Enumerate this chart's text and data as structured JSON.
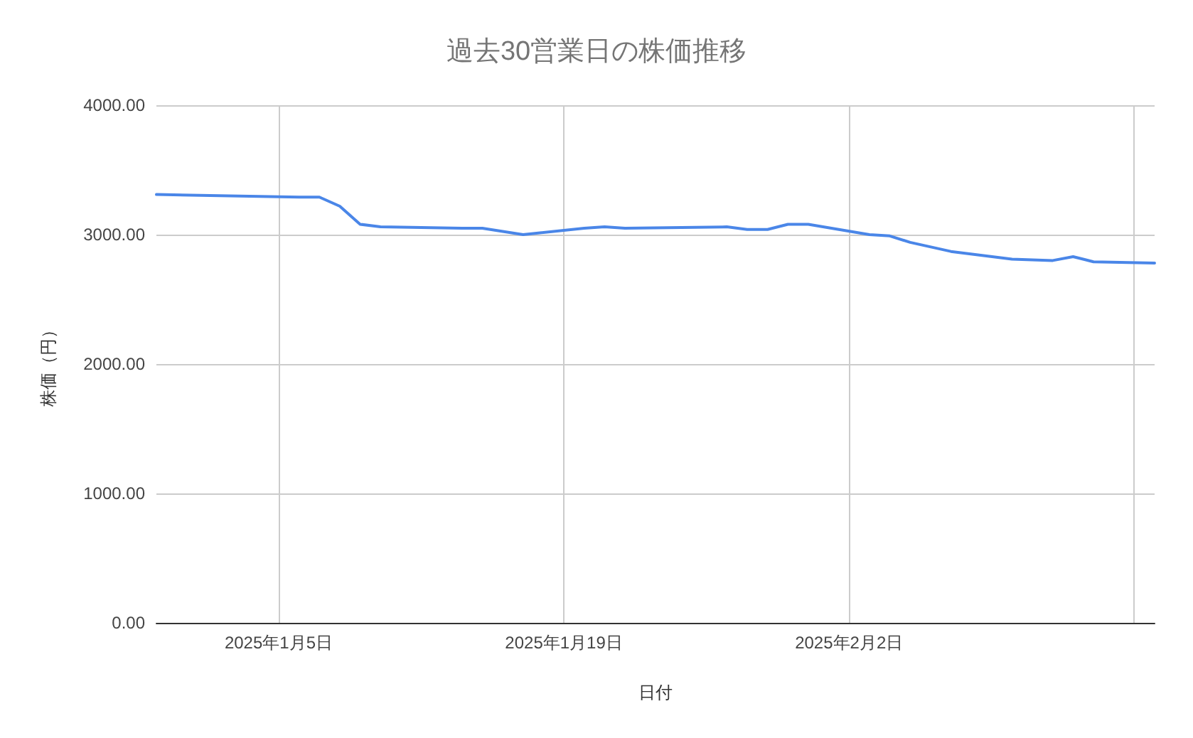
{
  "chart_data": {
    "type": "line",
    "title": "過去30営業日の株価推移",
    "xlabel": "日付",
    "ylabel": "株価（円）",
    "x": [
      "2024-12-30",
      "2025-01-06",
      "2025-01-07",
      "2025-01-08",
      "2025-01-09",
      "2025-01-10",
      "2025-01-14",
      "2025-01-15",
      "2025-01-17",
      "2025-01-20",
      "2025-01-21",
      "2025-01-22",
      "2025-01-27",
      "2025-01-28",
      "2025-01-29",
      "2025-01-30",
      "2025-01-31",
      "2025-02-03",
      "2025-02-04",
      "2025-02-05",
      "2025-02-07",
      "2025-02-10",
      "2025-02-12",
      "2025-02-13",
      "2025-02-14",
      "2025-02-17"
    ],
    "series": [
      {
        "color": "#4a86e8",
        "values": [
          3310,
          3290,
          3290,
          3220,
          3080,
          3060,
          3050,
          3050,
          3000,
          3050,
          3060,
          3050,
          3060,
          3040,
          3040,
          3080,
          3080,
          3000,
          2990,
          2940,
          2870,
          2810,
          2800,
          2830,
          2790,
          2780
        ]
      }
    ],
    "xlim": [
      "2024-12-30",
      "2025-02-17"
    ],
    "xticks": [
      {
        "value": "2025-01-05",
        "label": "2025年1月5日"
      },
      {
        "value": "2025-01-19",
        "label": "2025年1月19日"
      },
      {
        "value": "2025-02-02",
        "label": "2025年2月2日"
      },
      {
        "value": "2025-02-16",
        "label": null
      }
    ],
    "ylim": [
      0,
      4000
    ],
    "yticks": [
      {
        "value": 0,
        "label": "0.00"
      },
      {
        "value": 1000,
        "label": "1000.00"
      },
      {
        "value": 2000,
        "label": "2000.00"
      },
      {
        "value": 3000,
        "label": "3000.00"
      },
      {
        "value": 4000,
        "label": "4000.00"
      }
    ],
    "grid": true,
    "marker": "none",
    "line_style": "solid"
  }
}
